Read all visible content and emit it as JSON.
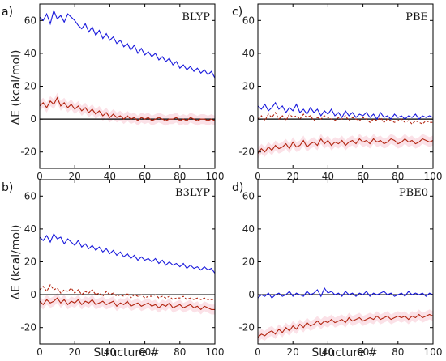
{
  "figure": {
    "ylabel": "ΔE (kcal/mol)",
    "xlabel": "Structure #"
  },
  "colors": {
    "blue": "#1a1adc",
    "red": "#b22510",
    "shade": "#f7c9d4",
    "axis": "#000000"
  },
  "chart_data": [
    {
      "type": "line",
      "panel": "a)",
      "label": "BLYP",
      "xlim": [
        0,
        100
      ],
      "ylim": [
        -30,
        70
      ],
      "xticks": [
        0,
        20,
        40,
        60,
        80,
        100
      ],
      "yticks": [
        -20,
        0,
        20,
        40,
        60
      ],
      "x": [
        0,
        2,
        4,
        6,
        8,
        10,
        12,
        14,
        16,
        18,
        20,
        22,
        24,
        26,
        28,
        30,
        32,
        34,
        36,
        38,
        40,
        42,
        44,
        46,
        48,
        50,
        52,
        54,
        56,
        58,
        60,
        62,
        64,
        66,
        68,
        70,
        72,
        74,
        76,
        78,
        80,
        82,
        84,
        86,
        88,
        90,
        92,
        94,
        96,
        98,
        100
      ],
      "series": [
        {
          "color": "blue",
          "dash": "solid",
          "values": [
            62,
            60,
            64,
            58,
            66,
            61,
            63,
            59,
            64,
            62,
            60,
            57,
            55,
            58,
            53,
            56,
            51,
            54,
            49,
            52,
            48,
            50,
            46,
            48,
            44,
            46,
            42,
            45,
            40,
            43,
            39,
            41,
            38,
            40,
            36,
            38,
            35,
            37,
            33,
            35,
            31,
            33,
            30,
            32,
            29,
            31,
            28,
            30,
            27,
            29,
            25
          ]
        },
        {
          "color": "red",
          "dash": "solid",
          "values": [
            8,
            10,
            7,
            11,
            9,
            13,
            8,
            10,
            7,
            9,
            6,
            8,
            5,
            7,
            4,
            6,
            3,
            5,
            2,
            4,
            1,
            3,
            1,
            2,
            0,
            2,
            0,
            1,
            -1,
            1,
            0,
            1,
            -1,
            0,
            1,
            0,
            -1,
            0,
            0,
            1,
            -1,
            0,
            -1,
            1,
            0,
            -1,
            0,
            0,
            -1,
            0,
            -1
          ]
        }
      ]
    },
    {
      "type": "line",
      "panel": "c)",
      "label": "PBE",
      "xlim": [
        0,
        100
      ],
      "ylim": [
        -30,
        70
      ],
      "xticks": [
        0,
        20,
        40,
        60,
        80,
        100
      ],
      "yticks": [
        -20,
        0,
        20,
        40,
        60
      ],
      "x": [
        0,
        2,
        4,
        6,
        8,
        10,
        12,
        14,
        16,
        18,
        20,
        22,
        24,
        26,
        28,
        30,
        32,
        34,
        36,
        38,
        40,
        42,
        44,
        46,
        48,
        50,
        52,
        54,
        56,
        58,
        60,
        62,
        64,
        66,
        68,
        70,
        72,
        74,
        76,
        78,
        80,
        82,
        84,
        86,
        88,
        90,
        92,
        94,
        96,
        98,
        100
      ],
      "series": [
        {
          "color": "blue",
          "dash": "solid",
          "values": [
            8,
            6,
            9,
            5,
            7,
            10,
            6,
            8,
            4,
            7,
            5,
            9,
            4,
            6,
            3,
            7,
            4,
            6,
            2,
            5,
            3,
            6,
            2,
            4,
            1,
            5,
            2,
            4,
            1,
            3,
            2,
            4,
            1,
            3,
            0,
            4,
            1,
            2,
            0,
            3,
            1,
            2,
            0,
            2,
            1,
            3,
            0,
            2,
            1,
            2,
            1
          ]
        },
        {
          "color": "red",
          "dash": "dashed",
          "values": [
            0,
            2,
            -1,
            3,
            1,
            4,
            0,
            2,
            -1,
            3,
            1,
            2,
            0,
            3,
            1,
            2,
            -1,
            1,
            0,
            2,
            1,
            0,
            -1,
            1,
            0,
            2,
            -1,
            1,
            0,
            -1,
            1,
            0,
            -2,
            0,
            -1,
            1,
            -2,
            0,
            -1,
            -2,
            -1,
            0,
            -2,
            -1,
            -3,
            -1,
            -2,
            -3,
            -1,
            -2,
            -2
          ]
        },
        {
          "color": "red",
          "dash": "solid",
          "values": [
            -21,
            -18,
            -20,
            -17,
            -19,
            -16,
            -18,
            -17,
            -15,
            -18,
            -14,
            -17,
            -16,
            -13,
            -17,
            -15,
            -14,
            -16,
            -12,
            -15,
            -13,
            -16,
            -14,
            -15,
            -13,
            -16,
            -14,
            -13,
            -15,
            -12,
            -14,
            -13,
            -15,
            -12,
            -14,
            -13,
            -15,
            -14,
            -12,
            -13,
            -15,
            -14,
            -12,
            -14,
            -13,
            -15,
            -14,
            -12,
            -13,
            -14,
            -13
          ]
        }
      ]
    },
    {
      "type": "line",
      "panel": "b)",
      "label": "B3LYP",
      "xlim": [
        0,
        100
      ],
      "ylim": [
        -30,
        70
      ],
      "xticks": [
        0,
        20,
        40,
        60,
        80,
        100
      ],
      "yticks": [
        -20,
        0,
        20,
        40,
        60
      ],
      "x": [
        0,
        2,
        4,
        6,
        8,
        10,
        12,
        14,
        16,
        18,
        20,
        22,
        24,
        26,
        28,
        30,
        32,
        34,
        36,
        38,
        40,
        42,
        44,
        46,
        48,
        50,
        52,
        54,
        56,
        58,
        60,
        62,
        64,
        66,
        68,
        70,
        72,
        74,
        76,
        78,
        80,
        82,
        84,
        86,
        88,
        90,
        92,
        94,
        96,
        98,
        100
      ],
      "series": [
        {
          "color": "blue",
          "dash": "solid",
          "values": [
            35,
            33,
            36,
            32,
            37,
            34,
            35,
            31,
            34,
            32,
            30,
            33,
            29,
            31,
            28,
            30,
            27,
            29,
            26,
            28,
            25,
            27,
            24,
            26,
            23,
            25,
            22,
            24,
            21,
            23,
            21,
            22,
            20,
            22,
            19,
            21,
            18,
            20,
            18,
            19,
            17,
            19,
            16,
            18,
            16,
            17,
            15,
            17,
            15,
            16,
            13
          ]
        },
        {
          "color": "red",
          "dash": "dashed",
          "values": [
            3,
            5,
            2,
            6,
            3,
            4,
            1,
            3,
            2,
            4,
            1,
            3,
            0,
            2,
            1,
            3,
            0,
            1,
            -1,
            2,
            0,
            1,
            -1,
            0,
            -1,
            1,
            -2,
            0,
            -1,
            0,
            -2,
            -1,
            -1,
            0,
            -2,
            -1,
            -2,
            -1,
            -3,
            -2,
            -2,
            -1,
            -3,
            -2,
            -3,
            -2,
            -3,
            -2,
            -3,
            -3,
            -3
          ]
        },
        {
          "color": "red",
          "dash": "solid",
          "values": [
            -4,
            -6,
            -3,
            -5,
            -4,
            -2,
            -5,
            -3,
            -6,
            -4,
            -5,
            -3,
            -6,
            -4,
            -5,
            -3,
            -6,
            -5,
            -4,
            -6,
            -5,
            -4,
            -7,
            -5,
            -6,
            -4,
            -7,
            -6,
            -5,
            -7,
            -6,
            -5,
            -7,
            -6,
            -8,
            -6,
            -7,
            -5,
            -8,
            -7,
            -6,
            -8,
            -7,
            -6,
            -8,
            -7,
            -9,
            -7,
            -8,
            -9,
            -9
          ]
        }
      ]
    },
    {
      "type": "line",
      "panel": "d)",
      "label": "PBE0",
      "xlim": [
        0,
        100
      ],
      "ylim": [
        -30,
        70
      ],
      "xticks": [
        0,
        20,
        40,
        60,
        80,
        100
      ],
      "yticks": [
        -20,
        0,
        20,
        40,
        60
      ],
      "x": [
        0,
        2,
        4,
        6,
        8,
        10,
        12,
        14,
        16,
        18,
        20,
        22,
        24,
        26,
        28,
        30,
        32,
        34,
        36,
        38,
        40,
        42,
        44,
        46,
        48,
        50,
        52,
        54,
        56,
        58,
        60,
        62,
        64,
        66,
        68,
        70,
        72,
        74,
        76,
        78,
        80,
        82,
        84,
        86,
        88,
        90,
        92,
        94,
        96,
        98,
        100
      ],
      "series": [
        {
          "color": "blue",
          "dash": "solid",
          "values": [
            -2,
            0,
            -1,
            1,
            -2,
            0,
            1,
            -1,
            0,
            2,
            -1,
            1,
            0,
            -1,
            2,
            0,
            1,
            3,
            -1,
            4,
            1,
            2,
            0,
            1,
            -1,
            2,
            0,
            1,
            -1,
            1,
            0,
            2,
            -1,
            1,
            0,
            1,
            2,
            0,
            1,
            -1,
            0,
            1,
            -1,
            2,
            0,
            1,
            0,
            1,
            -1,
            1,
            0
          ]
        },
        {
          "color": "red",
          "dash": "solid",
          "values": [
            -26,
            -24,
            -25,
            -23,
            -22,
            -24,
            -21,
            -23,
            -20,
            -22,
            -19,
            -21,
            -18,
            -20,
            -17,
            -19,
            -18,
            -16,
            -18,
            -16,
            -17,
            -15,
            -17,
            -16,
            -15,
            -17,
            -14,
            -16,
            -15,
            -14,
            -16,
            -15,
            -14,
            -15,
            -13,
            -15,
            -14,
            -13,
            -15,
            -14,
            -13,
            -14,
            -13,
            -15,
            -13,
            -14,
            -12,
            -14,
            -13,
            -12,
            -13
          ]
        }
      ]
    }
  ]
}
